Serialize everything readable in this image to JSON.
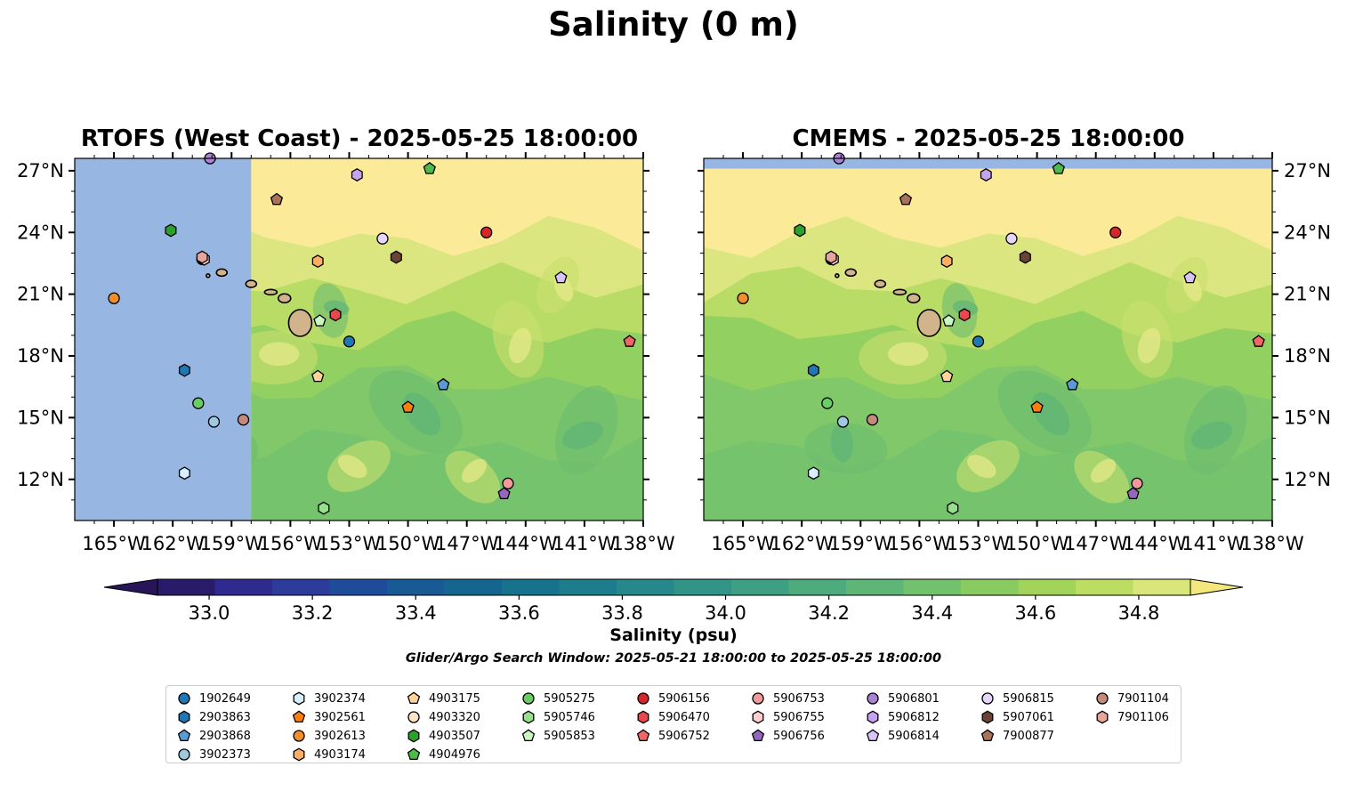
{
  "figure": {
    "title": "Salinity (0 m)",
    "colorbar_label": "Salinity (psu)",
    "search_window": "Glider/Argo Search Window: 2025-05-21 18:00:00 to 2025-05-25 18:00:00"
  },
  "colors": {
    "ocean_nodata": "#97b6e1",
    "high_salinity": "#fbea98",
    "land": "#d2b48c"
  },
  "chart_data": [
    {
      "type": "heatmap",
      "title": "RTOFS (West Coast) - 2025-05-25 18:00:00",
      "x_ticks": [
        "165°W",
        "162°W",
        "159°W",
        "156°W",
        "153°W",
        "150°W",
        "147°W",
        "144°W",
        "141°W",
        "138°W"
      ],
      "y_ticks": [
        "27°N",
        "24°N",
        "21°N",
        "18°N",
        "15°N",
        "12°N"
      ],
      "xlim": [
        -167,
        -138
      ],
      "ylim": [
        10,
        27.6
      ],
      "no_data_west_of": -158,
      "fill_note": "high salinity north, lower salinity south-east"
    },
    {
      "type": "heatmap",
      "title": "CMEMS - 2025-05-25 18:00:00",
      "x_ticks": [
        "165°W",
        "162°W",
        "159°W",
        "156°W",
        "153°W",
        "150°W",
        "147°W",
        "144°W",
        "141°W",
        "138°W"
      ],
      "y_ticks": [
        "27°N",
        "24°N",
        "21°N",
        "18°N",
        "15°N",
        "12°N"
      ],
      "xlim": [
        -167,
        -138
      ],
      "ylim": [
        10,
        27.6
      ],
      "no_data_north_of": 27.1
    }
  ],
  "colorbar": {
    "ticks": [
      "33.0",
      "33.2",
      "33.4",
      "33.6",
      "33.8",
      "34.0",
      "34.2",
      "34.4",
      "34.6",
      "34.8"
    ],
    "min": 32.9,
    "max": 34.9,
    "colors": [
      "#2a1a6a",
      "#2e2a8f",
      "#2c3b9c",
      "#1f4c9a",
      "#185a96",
      "#146691",
      "#17728e",
      "#1d7d8c",
      "#25888a",
      "#319487",
      "#3ea083",
      "#4dab7d",
      "#5eb676",
      "#72c16c",
      "#88cb61",
      "#a2d45a",
      "#bddc62",
      "#d9e67a"
    ],
    "over_color": "#f3e77e",
    "under_color": "#281559"
  },
  "floats": [
    {
      "id": "1902649",
      "marker": "circle",
      "color": "#1f77b4",
      "lon": -153.0,
      "lat": 18.7
    },
    {
      "id": "2903863",
      "marker": "hexagon",
      "color": "#1f77b4",
      "lon": -161.4,
      "lat": 17.3
    },
    {
      "id": "2903868",
      "marker": "pentagon",
      "color": "#5b9bd5",
      "lon": -148.2,
      "lat": 16.6
    },
    {
      "id": "3902373",
      "marker": "circle",
      "color": "#9ecae1",
      "lon": -159.9,
      "lat": 14.8
    },
    {
      "id": "3902374",
      "marker": "hexagon",
      "color": "#d7efff",
      "lon": -161.4,
      "lat": 12.3
    },
    {
      "id": "3902561",
      "marker": "pentagon",
      "color": "#ff7f0e",
      "lon": -150.0,
      "lat": 15.5
    },
    {
      "id": "3902613",
      "marker": "circle",
      "color": "#f28e2b",
      "lon": -165.0,
      "lat": 20.8
    },
    {
      "id": "4903174",
      "marker": "hexagon",
      "color": "#ffae64",
      "lon": -154.6,
      "lat": 22.6
    },
    {
      "id": "4903175",
      "marker": "pentagon",
      "color": "#ffd39b",
      "lon": -154.6,
      "lat": 17.0
    },
    {
      "id": "4903320",
      "marker": "circle",
      "color": "#fde3c8",
      "lon": -160.5,
      "lat": 22.7
    },
    {
      "id": "4903507",
      "marker": "hexagon",
      "color": "#2ca02c",
      "lon": -162.1,
      "lat": 24.1
    },
    {
      "id": "4904976",
      "marker": "pentagon",
      "color": "#4cbb47",
      "lon": -148.9,
      "lat": 27.1
    },
    {
      "id": "5905275",
      "marker": "circle",
      "color": "#6acc64",
      "lon": -160.7,
      "lat": 15.7
    },
    {
      "id": "5905746",
      "marker": "hexagon",
      "color": "#98df8a",
      "lon": -154.3,
      "lat": 10.6
    },
    {
      "id": "5905853",
      "marker": "pentagon",
      "color": "#c8f5c0",
      "lon": -154.5,
      "lat": 19.7
    },
    {
      "id": "5906156",
      "marker": "circle",
      "color": "#d62728",
      "lon": -146.0,
      "lat": 24.0
    },
    {
      "id": "5906470",
      "marker": "hexagon",
      "color": "#e8484a",
      "lon": -153.7,
      "lat": 20.0
    },
    {
      "id": "5906752",
      "marker": "pentagon",
      "color": "#f06565",
      "lon": -138.7,
      "lat": 18.7
    },
    {
      "id": "5906753",
      "marker": "circle",
      "color": "#f29a9a",
      "lon": -144.9,
      "lat": 11.8
    },
    {
      "id": "5906755",
      "marker": "hexagon",
      "color": "#ffcfcf",
      "lon": -160.4,
      "lat": 22.7
    },
    {
      "id": "5906756",
      "marker": "pentagon",
      "color": "#9467bd",
      "lon": -145.1,
      "lat": 11.3
    },
    {
      "id": "5906801",
      "marker": "circle",
      "color": "#ab82d4",
      "lon": -160.1,
      "lat": 27.6
    },
    {
      "id": "5906812",
      "marker": "hexagon",
      "color": "#c5a3f0",
      "lon": -152.6,
      "lat": 26.8
    },
    {
      "id": "5906814",
      "marker": "pentagon",
      "color": "#d9c4f7",
      "lon": -142.2,
      "lat": 21.8
    },
    {
      "id": "5906815",
      "marker": "circle",
      "color": "#e6d6fb",
      "lon": -151.3,
      "lat": 23.7
    },
    {
      "id": "5907061",
      "marker": "hexagon",
      "color": "#6b4335",
      "lon": -150.6,
      "lat": 22.8
    },
    {
      "id": "7900877",
      "marker": "pentagon",
      "color": "#a9735a",
      "lon": -156.7,
      "lat": 25.6
    },
    {
      "id": "7901104",
      "marker": "circle",
      "color": "#c48a7c",
      "lon": -158.4,
      "lat": 14.9
    },
    {
      "id": "7901106",
      "marker": "hexagon",
      "color": "#e8a59b",
      "lon": -160.5,
      "lat": 22.8
    }
  ]
}
